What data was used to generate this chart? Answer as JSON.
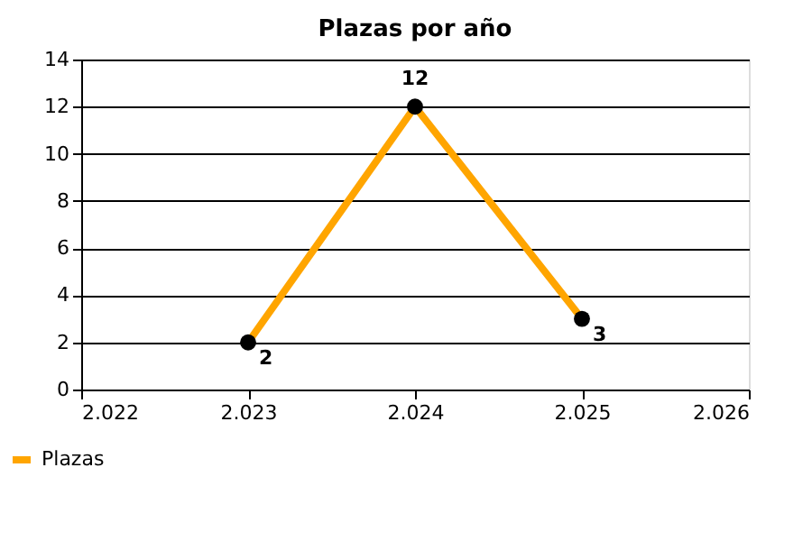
{
  "chart_data": {
    "type": "line",
    "title": "Plazas por año",
    "x": [
      2023,
      2024,
      2025
    ],
    "series": [
      {
        "name": "Plazas",
        "color": "#ffa500",
        "values": [
          2,
          12,
          3
        ]
      }
    ],
    "xlim": [
      2022,
      2026
    ],
    "xticks": [
      {
        "value": 2022,
        "label": "2.022"
      },
      {
        "value": 2023,
        "label": "2.023"
      },
      {
        "value": 2024,
        "label": "2.024"
      },
      {
        "value": 2025,
        "label": "2.025"
      },
      {
        "value": 2026,
        "label": "2.026"
      }
    ],
    "ylim": [
      0,
      14
    ],
    "yticks": [
      0,
      2,
      4,
      6,
      8,
      10,
      12,
      14
    ],
    "grid": "y",
    "legend": "bottom left",
    "marker": "circle",
    "line_style": "solid",
    "data_labels": true
  }
}
